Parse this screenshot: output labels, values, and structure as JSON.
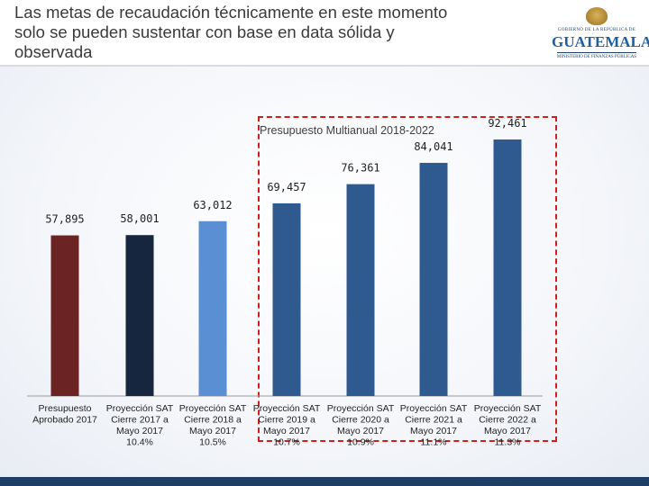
{
  "slide": {
    "title_lines": [
      "Las metas de recaudación técnicamente en este momento",
      "solo se pueden sustentar con base en data sólida y",
      "observada"
    ]
  },
  "logo": {
    "top_text": "GOBIERNO DE LA REPÚBLICA DE",
    "main_text": "GUATEMALA",
    "sub_text": "MINISTERIO DE FINANZAS PÚBLICAS"
  },
  "chart_data": {
    "type": "bar",
    "title": "",
    "xlabel": "",
    "ylabel": "",
    "ylim": [
      0,
      95000
    ],
    "grid": false,
    "annotation": "Presupuesto Multianual 2018-2022",
    "categories": [
      [
        "Presupuesto",
        "Aprobado 2017"
      ],
      [
        "Proyección SAT",
        "Cierre 2017 a",
        "Mayo 2017",
        "10.4%"
      ],
      [
        "Proyección SAT",
        "Cierre 2018 a",
        "Mayo 2017",
        "10.5%"
      ],
      [
        "Proyección SAT",
        "Cierre 2019 a",
        "Mayo 2017",
        "10.7%"
      ],
      [
        "Proyección SAT",
        "Cierre 2020 a",
        "Mayo 2017",
        "10.9%"
      ],
      [
        "Proyección SAT",
        "Cierre 2021 a",
        "Mayo 2017",
        "11.1%"
      ],
      [
        "Proyección SAT",
        "Cierre 2022 a",
        "Mayo 2017",
        "11.3%"
      ]
    ],
    "values": [
      57895,
      58001,
      63012,
      69457,
      76361,
      84041,
      92461
    ],
    "value_labels": [
      "57,895",
      "58,001",
      "63,012",
      "69,457",
      "76,361",
      "84,041",
      "92,461"
    ],
    "colors": [
      "#6b2323",
      "#16263f",
      "#5b8fd4",
      "#2f5a90",
      "#2f5a90",
      "#2f5a90",
      "#2f5a90"
    ]
  }
}
